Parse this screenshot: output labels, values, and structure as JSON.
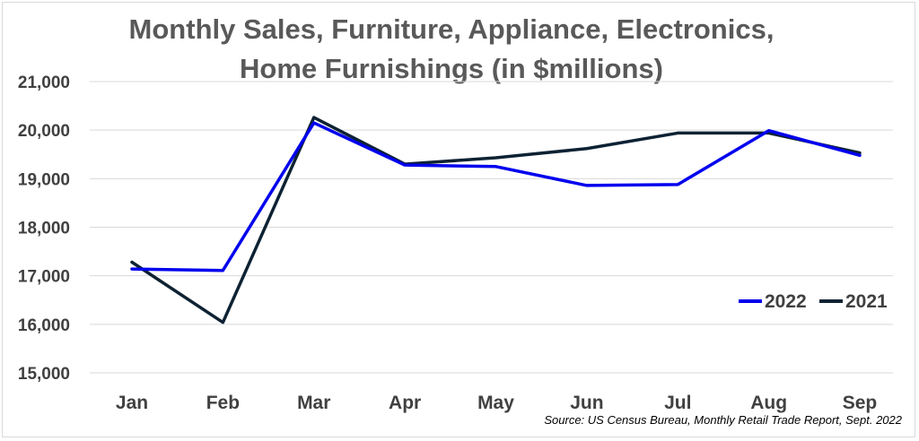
{
  "chart_data": {
    "type": "line",
    "title_line1": "Monthly Sales, Furniture, Appliance, Electronics,",
    "title_line2": "Home Furnishings (in $millions)",
    "categories": [
      "Jan",
      "Feb",
      "Mar",
      "Apr",
      "May",
      "Jun",
      "Jul",
      "Aug",
      "Sep"
    ],
    "series": [
      {
        "name": "2022",
        "color": "#0000ee",
        "values": [
          17140,
          17110,
          20150,
          19280,
          19250,
          18860,
          18880,
          19990,
          19480
        ]
      },
      {
        "name": "2021",
        "color": "#0d2233",
        "values": [
          17280,
          16040,
          20260,
          19300,
          19430,
          19620,
          19940,
          19940,
          19530
        ]
      }
    ],
    "ylim": [
      15000,
      21000
    ],
    "yticks": [
      "15,000",
      "16,000",
      "17,000",
      "18,000",
      "19,000",
      "20,000",
      "21,000"
    ],
    "ytick_values": [
      15000,
      16000,
      17000,
      18000,
      19000,
      20000,
      21000
    ],
    "grid": true,
    "legend_position": "bottom-right",
    "source": "Source: US Census Bureau, Monthly Retail Trade Report, Sept. 2022"
  }
}
